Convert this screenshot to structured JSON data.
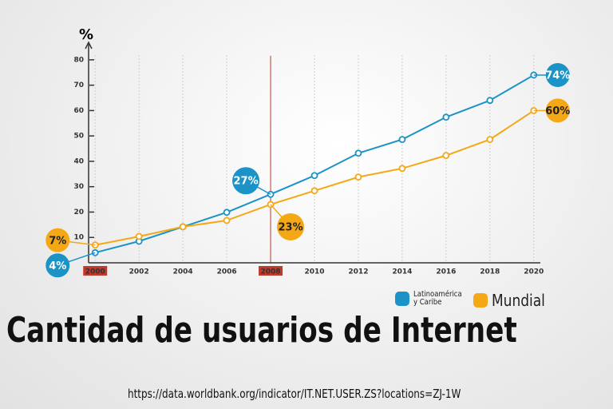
{
  "chart_data": {
    "type": "line",
    "title": "Cantidad de usuarios de Internet",
    "source": "https://data.worldbank.org/indicator/IT.NET.USER.ZS?locations=ZJ-1W",
    "y_axis_label": "%",
    "x": [
      2000,
      2002,
      2004,
      2006,
      2008,
      2010,
      2012,
      2014,
      2016,
      2018,
      2020
    ],
    "xlim": [
      1999.7,
      2020.3
    ],
    "xticks": [
      2000,
      2002,
      2004,
      2006,
      2008,
      2010,
      2012,
      2014,
      2016,
      2018,
      2020
    ],
    "ylim": [
      0,
      85
    ],
    "yticks": [
      10,
      20,
      30,
      40,
      50,
      60,
      70,
      80
    ],
    "grid": true,
    "marker_x": 2008,
    "highlighted_xticks": [
      2000,
      2008
    ],
    "series": [
      {
        "name": "Latinoamérica y Caribe",
        "color": "#1b93c6",
        "values": [
          4,
          8.5,
          14.2,
          19.9,
          27,
          34.4,
          43.2,
          48.6,
          57.4,
          64,
          74
        ],
        "value_labels": [
          "4%",
          null,
          null,
          null,
          "27%",
          null,
          null,
          null,
          null,
          null,
          "74%"
        ]
      },
      {
        "name": "Mundial",
        "color": "#f5a816",
        "values": [
          7,
          10.4,
          14.2,
          16.7,
          23,
          28.4,
          33.8,
          37.2,
          42.3,
          48.6,
          60
        ],
        "value_labels": [
          "7%",
          null,
          null,
          null,
          "23%",
          null,
          null,
          null,
          null,
          null,
          "60%"
        ]
      }
    ]
  }
}
